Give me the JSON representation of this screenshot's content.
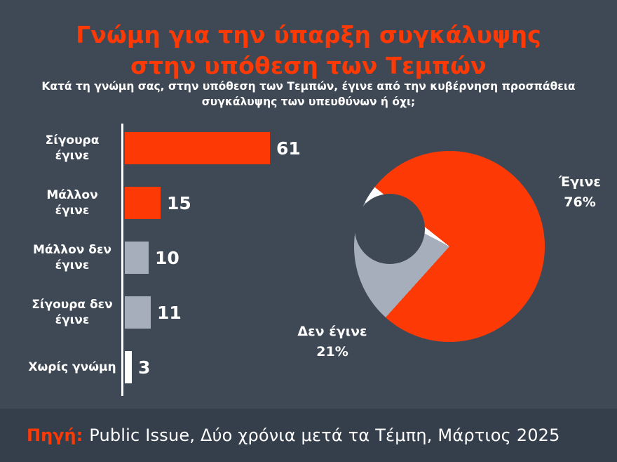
{
  "title": {
    "line1": "Γνώμη για την ύπαρξη συγκάλυψης",
    "line2": "στην υπόθεση των Τεμπών"
  },
  "subtitle": {
    "line1": "Κατά τη γνώμη σας, στην υπόθεση των Τεμπών, έγινε από την κυβέρνηση προσπάθεια",
    "line2": "συγκάλυψης των υπευθύνων ή όχι;"
  },
  "footer": {
    "label": "Πηγή:",
    "text": "Public Issue, Δύο χρόνια μετά τα Τέμπη, Μάρτιος 2025"
  },
  "colors": {
    "background": "#3f4956",
    "footer_background": "#353e4b",
    "accent": "#fd3a05",
    "gray": "#a7aebb",
    "white": "#ffffff"
  },
  "chart_data": [
    {
      "type": "bar",
      "orientation": "horizontal",
      "title": "Γνώμη για την ύπαρξη συγκάλυψης στην υπόθεση των Τεμπών",
      "categories": [
        "Σίγουρα έγινε",
        "Μάλλον έγινε",
        "Μάλλον δεν έγινε",
        "Σίγουρα δεν έγινε",
        "Χωρίς γνώμη"
      ],
      "values": [
        61,
        15,
        10,
        11,
        3
      ],
      "value_labels": [
        "61",
        "15",
        "10",
        "11",
        "3"
      ],
      "bar_colors": [
        "#fd3a05",
        "#fd3a05",
        "#a7aebb",
        "#a7aebb",
        "#ffffff"
      ],
      "xlim": [
        0,
        70
      ],
      "xlabel": "",
      "ylabel": "",
      "grid": false
    },
    {
      "type": "pie",
      "donut": true,
      "labels": [
        "Έγινε",
        "Δεν έγινε",
        "Χωρίς γνώμη"
      ],
      "values": [
        76,
        21,
        3
      ],
      "colors": [
        "#fd3a05",
        "#a7aebb",
        "#ffffff"
      ],
      "slice_labels": [
        {
          "label": "Έγινε",
          "pct": "76%"
        },
        {
          "label": "Δεν έγινε",
          "pct": "21%"
        }
      ],
      "legend": false
    }
  ]
}
